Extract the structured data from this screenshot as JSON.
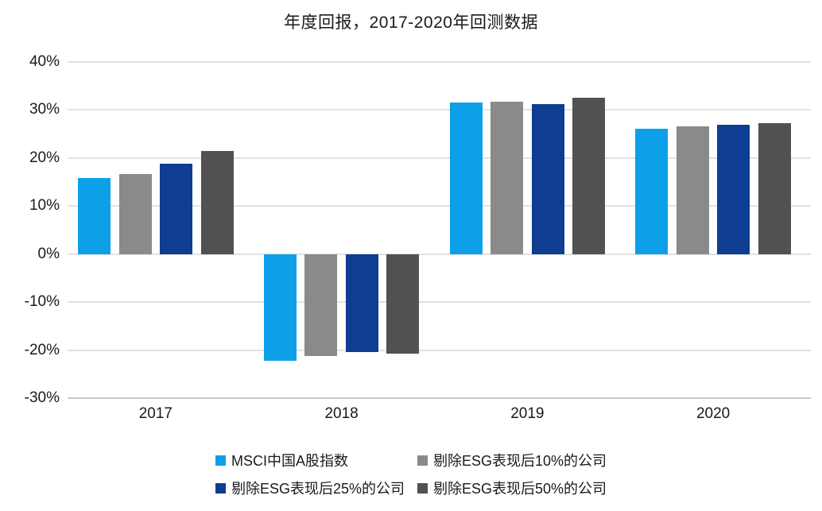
{
  "chart_data": {
    "type": "bar",
    "title": "年度回报，2017-2020年回测数据",
    "categories": [
      "2017",
      "2018",
      "2019",
      "2020"
    ],
    "series": [
      {
        "name": "MSCI中国A股指数",
        "color": "#0da0e8",
        "values": [
          15.9,
          -22.3,
          31.5,
          26.1
        ]
      },
      {
        "name": "剔除ESG表现后10%的公司",
        "color": "#8a8a8a",
        "values": [
          16.6,
          -21.2,
          31.8,
          26.6
        ]
      },
      {
        "name": "剔除ESG表现后25%的公司",
        "color": "#0e3d91",
        "values": [
          18.8,
          -20.4,
          31.2,
          26.9
        ]
      },
      {
        "name": "剔除ESG表现后50%的公司",
        "color": "#515151",
        "values": [
          21.5,
          -20.8,
          32.5,
          27.2
        ]
      }
    ],
    "ylim": [
      -30,
      40
    ],
    "ytick_step": 10,
    "yticks": [
      {
        "value": 40,
        "label": "40%"
      },
      {
        "value": 30,
        "label": "30%"
      },
      {
        "value": 20,
        "label": "20%"
      },
      {
        "value": 10,
        "label": "10%"
      },
      {
        "value": 0,
        "label": "0%"
      },
      {
        "value": -10,
        "label": "-10%"
      },
      {
        "value": -20,
        "label": "-20%"
      },
      {
        "value": -30,
        "label": "-30%"
      }
    ],
    "grid": true,
    "gridline_color": "#e2e2e2",
    "legend_position": "bottom",
    "xlabel": "",
    "ylabel": ""
  }
}
